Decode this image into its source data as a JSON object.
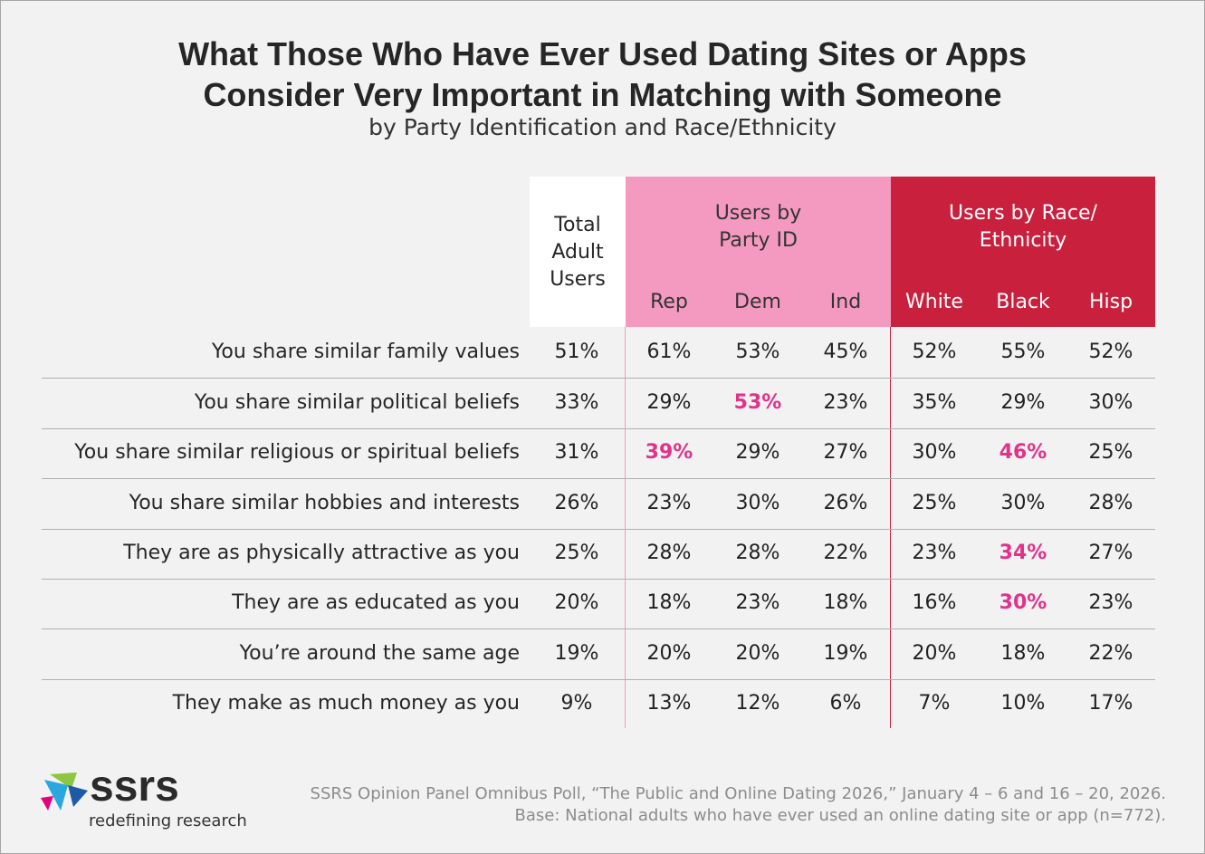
{
  "title": [
    "What Those Who Have Ever Used Dating Sites or Apps",
    "Consider Very Important in Matching with Someone"
  ],
  "subtitle": "by Party Identification and Race/Ethnicity",
  "table": {
    "header": {
      "total": "Total Adult Users",
      "groups": [
        {
          "label": "Users by Party ID",
          "color": "#f49ac1",
          "text_color": "#333333",
          "columns": [
            "Rep",
            "Dem",
            "Ind"
          ]
        },
        {
          "label": "Users by Race/ Ethnicity",
          "color": "#c9203e",
          "text_color": "#ffffff",
          "columns": [
            "White",
            "Black",
            "Hisp"
          ]
        }
      ]
    },
    "rows": [
      {
        "label": "You share similar family values",
        "values": [
          "51%",
          "61%",
          "53%",
          "45%",
          "52%",
          "55%",
          "52%"
        ]
      },
      {
        "label": "You share similar political beliefs",
        "values": [
          "33%",
          "29%",
          "53%",
          "23%",
          "35%",
          "29%",
          "30%"
        ]
      },
      {
        "label": "You share similar religious or spiritual beliefs",
        "values": [
          "31%",
          "39%",
          "29%",
          "27%",
          "30%",
          "46%",
          "25%"
        ]
      },
      {
        "label": "You share similar hobbies and interests",
        "values": [
          "26%",
          "23%",
          "30%",
          "26%",
          "25%",
          "30%",
          "28%"
        ]
      },
      {
        "label": "They are as physically attractive as you",
        "values": [
          "25%",
          "28%",
          "28%",
          "22%",
          "23%",
          "34%",
          "27%"
        ]
      },
      {
        "label": "They are as educated as you",
        "values": [
          "20%",
          "18%",
          "23%",
          "18%",
          "16%",
          "30%",
          "23%"
        ]
      },
      {
        "label": "You’re around the same age",
        "values": [
          "19%",
          "20%",
          "20%",
          "19%",
          "20%",
          "18%",
          "22%"
        ]
      },
      {
        "label": "They make as much money as you",
        "values": [
          "9%",
          "13%",
          "12%",
          "6%",
          "7%",
          "10%",
          "17%"
        ]
      }
    ],
    "highlight": [
      [
        1,
        2
      ],
      [
        2,
        1
      ],
      [
        2,
        5
      ],
      [
        4,
        5
      ],
      [
        5,
        5
      ]
    ],
    "highlight_color": "#e0338a"
  },
  "footnote": [
    "SSRS Opinion Panel Omnibus Poll, “The Public and Online Dating 2026,” January 4 – 6 and 16 – 20, 2026.",
    "Base: National adults who have ever used an online dating site or app (n=772)."
  ],
  "logo": {
    "name": "ssrs",
    "tagline": "redefining research"
  }
}
